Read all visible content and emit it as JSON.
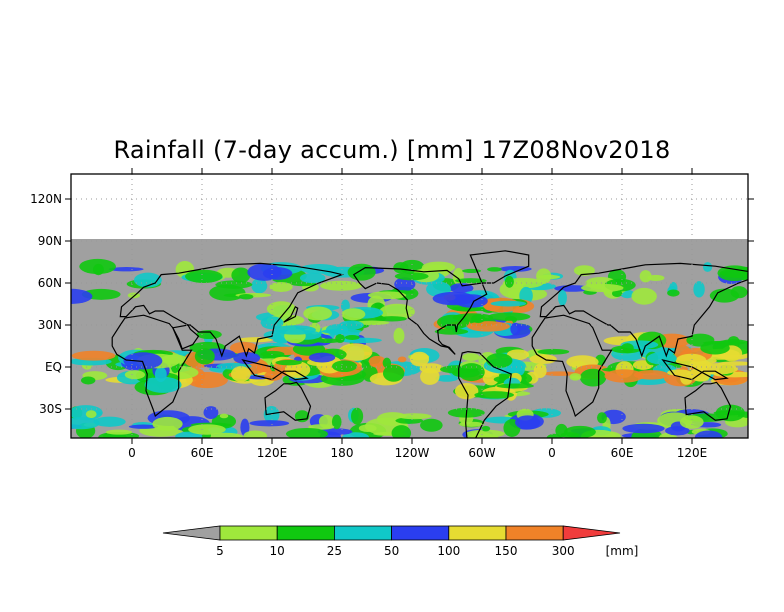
{
  "title": "Rainfall (7-day accum.) [mm] 17Z08Nov2018",
  "lat_labels": [
    "120N",
    "90N",
    "60N",
    "30N",
    "EQ",
    "30S"
  ],
  "lon_labels": [
    "0",
    "60E",
    "120E",
    "180",
    "120W",
    "60W",
    "0",
    "60E",
    "120E"
  ],
  "lat_values": [
    120,
    90,
    60,
    30,
    0,
    -30
  ],
  "lon_values": [
    0,
    60,
    120,
    180,
    240,
    300,
    360,
    420,
    480
  ],
  "colorbar": {
    "unit": "[mm]",
    "thresholds": [
      "5",
      "10",
      "25",
      "50",
      "100",
      "150",
      "300"
    ],
    "colors": [
      "#a0a0a0",
      "#9fe83c",
      "#10c810",
      "#10c8c8",
      "#2a3ef0",
      "#e6dc32",
      "#f08228",
      "#f03c3c"
    ]
  },
  "colors": {
    "no_rain": "#a0a0a0",
    "ocean_background": "#ffffff",
    "grid": "#999999"
  }
}
